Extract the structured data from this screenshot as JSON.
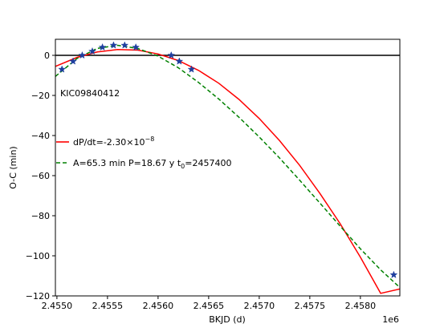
{
  "chart_data": {
    "type": "scatter",
    "xlabel": "BKJD (d)",
    "ylabel": "O-C (min)",
    "x_offset_label": "1e6",
    "annotation": "KIC09840412",
    "xlim": [
      2454985,
      2458390
    ],
    "ylim": [
      -120,
      8
    ],
    "x_ticks": [
      2455000,
      2455500,
      2456000,
      2456500,
      2457000,
      2457500,
      2458000
    ],
    "x_tick_labels": [
      "2.4550",
      "2.4555",
      "2.4560",
      "2.4565",
      "2.4570",
      "2.4575",
      "2.4580"
    ],
    "y_ticks": [
      0,
      -20,
      -40,
      -60,
      -80,
      -100,
      -120
    ],
    "y_tick_labels": [
      "0",
      "−20",
      "−40",
      "−60",
      "−80",
      "−100",
      "−120"
    ],
    "zero_line": 0,
    "legend": {
      "placement": "center-left",
      "entries": [
        {
          "label_text": "dP/dt=-2.30×10",
          "label_sup": "−8",
          "color": "#ff0000",
          "style": "solid"
        },
        {
          "label_text": "A=65.3 min  P=18.67 y  t",
          "label_sub": "0",
          "label_tail": "=2457400",
          "color": "#008000",
          "style": "dashed"
        }
      ]
    },
    "series": [
      {
        "kind": "points",
        "marker": "star",
        "color": "#1f3f9f",
        "x": [
          2455050,
          2455160,
          2455250,
          2455350,
          2455450,
          2455560,
          2455670,
          2455780,
          2456130,
          2456210,
          2456330,
          2458330
        ],
        "y": [
          -7,
          -3,
          0,
          2,
          4,
          5,
          5,
          4,
          0,
          -3,
          -7,
          -109.5
        ]
      },
      {
        "kind": "curve",
        "color": "#ff0000",
        "style": "solid",
        "x": [
          2454985,
          2455200,
          2455400,
          2455600,
          2455800,
          2456000,
          2456200,
          2456400,
          2456600,
          2456800,
          2457000,
          2457200,
          2457400,
          2457600,
          2457800,
          2458000,
          2458200,
          2458390
        ],
        "y": [
          -5.5,
          -1.0,
          1.7,
          2.9,
          2.6,
          0.7,
          -2.6,
          -7.5,
          -13.9,
          -22.0,
          -31.5,
          -42.5,
          -54.9,
          -68.9,
          -84.0,
          -100.7,
          -118.7,
          -116.5
        ]
      },
      {
        "kind": "curve",
        "color": "#008000",
        "style": "dashed",
        "x": [
          2454985,
          2455200,
          2455400,
          2455600,
          2455800,
          2456000,
          2456200,
          2456400,
          2456600,
          2456800,
          2457000,
          2457200,
          2457400,
          2457600,
          2457800,
          2458000,
          2458200,
          2458390
        ],
        "y": [
          -10.5,
          -1.5,
          3.5,
          5.0,
          3.4,
          -0.4,
          -6.2,
          -13.5,
          -21.8,
          -30.9,
          -40.7,
          -51.2,
          -62.3,
          -73.7,
          -85.2,
          -96.5,
          -107.0,
          -115.8
        ]
      }
    ]
  }
}
